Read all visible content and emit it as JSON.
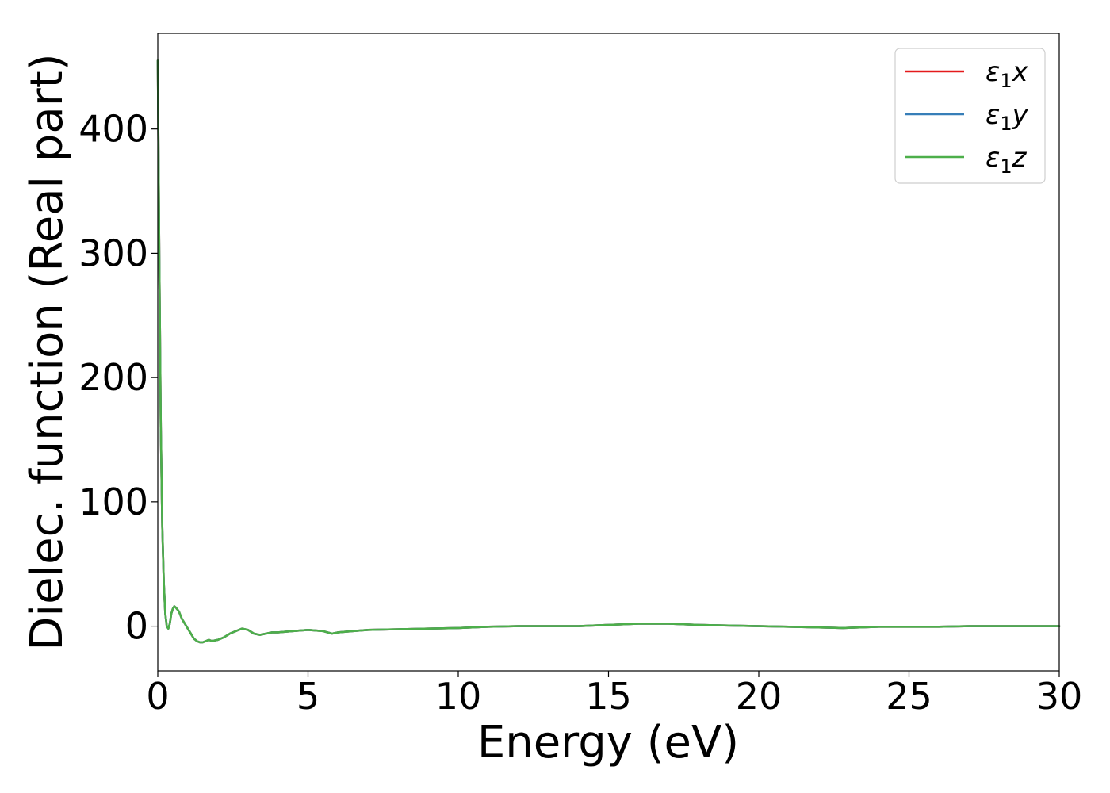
{
  "chart_data": {
    "type": "line",
    "title": "",
    "xlabel": "Energy (eV)",
    "ylabel": "Dielec. function (Real part)",
    "xlim": [
      0,
      30
    ],
    "ylim": [
      -36,
      477
    ],
    "xticks": [
      "0",
      "5",
      "10",
      "15",
      "20",
      "25",
      "30"
    ],
    "yticks": [
      "0",
      "100",
      "200",
      "300",
      "400"
    ],
    "xtick_values": [
      0,
      5,
      10,
      15,
      20,
      25,
      30
    ],
    "ytick_values": [
      0,
      100,
      200,
      300,
      400
    ],
    "grid": false,
    "legend_position": "top-right",
    "x": [
      0.0,
      0.05,
      0.1,
      0.15,
      0.2,
      0.25,
      0.3,
      0.35,
      0.4,
      0.45,
      0.5,
      0.55,
      0.6,
      0.7,
      0.8,
      0.9,
      1.0,
      1.1,
      1.2,
      1.3,
      1.4,
      1.5,
      1.6,
      1.7,
      1.8,
      2.0,
      2.2,
      2.4,
      2.6,
      2.8,
      3.0,
      3.2,
      3.4,
      3.6,
      3.8,
      4.0,
      4.5,
      5.0,
      5.5,
      5.8,
      6.0,
      6.5,
      7.0,
      8.0,
      9.0,
      10.0,
      11.0,
      12.0,
      13.0,
      14.0,
      15.0,
      16.0,
      17.0,
      18.0,
      19.0,
      20.0,
      21.0,
      22.0,
      22.8,
      24.0,
      25.0,
      26.0,
      27.0,
      28.0,
      29.0,
      30.0
    ],
    "series": [
      {
        "name": "ε₁x",
        "color": "#e41a1c",
        "values": [
          455,
          300,
          160,
          80,
          35,
          10,
          0,
          -2,
          2,
          10,
          14,
          16,
          15,
          12,
          6,
          2,
          -2,
          -6,
          -10,
          -12,
          -13,
          -13,
          -12,
          -11,
          -12,
          -11,
          -9,
          -6,
          -4,
          -2,
          -3,
          -6,
          -7,
          -6,
          -5,
          -5,
          -4,
          -3,
          -4,
          -6,
          -5,
          -4,
          -3,
          -2.5,
          -2,
          -1.5,
          -0.5,
          0,
          0,
          0,
          1,
          2,
          2,
          1,
          0.5,
          0,
          -0.5,
          -1,
          -1.5,
          -0.5,
          -0.5,
          -0.5,
          0,
          0,
          0,
          0
        ]
      },
      {
        "name": "ε₁y",
        "color": "#377eb8",
        "values": [
          455,
          300,
          160,
          80,
          35,
          10,
          0,
          -2,
          2,
          10,
          14,
          16,
          15,
          12,
          6,
          2,
          -2,
          -6,
          -10,
          -12,
          -13,
          -13,
          -12,
          -11,
          -12,
          -11,
          -9,
          -6,
          -4,
          -2,
          -3,
          -6,
          -7,
          -6,
          -5,
          -5,
          -4,
          -3,
          -4,
          -6,
          -5,
          -4,
          -3,
          -2.5,
          -2,
          -1.5,
          -0.5,
          0,
          0,
          0,
          1,
          2,
          2,
          1,
          0.5,
          0,
          -0.5,
          -1,
          -1.5,
          -0.5,
          -0.5,
          -0.5,
          0,
          0,
          0,
          0
        ]
      },
      {
        "name": "ε₁z",
        "color": "#4daf4a",
        "values": [
          455,
          300,
          160,
          80,
          35,
          10,
          0,
          -2,
          2,
          10,
          14,
          16,
          15,
          12,
          6,
          2,
          -2,
          -6,
          -10,
          -12,
          -13,
          -13,
          -12,
          -11,
          -12,
          -11,
          -9,
          -6,
          -4,
          -2,
          -3,
          -6,
          -7,
          -6,
          -5,
          -5,
          -4,
          -3,
          -4,
          -6,
          -5,
          -4,
          -3,
          -2.5,
          -2,
          -1.5,
          -0.5,
          0,
          0,
          0,
          1,
          2,
          2,
          1,
          0.5,
          0,
          -0.5,
          -1,
          -1.5,
          -0.5,
          -0.5,
          -0.5,
          0,
          0,
          0,
          0
        ]
      }
    ],
    "legend": [
      {
        "base": "ε",
        "sub": "1",
        "axis": "x"
      },
      {
        "base": "ε",
        "sub": "1",
        "axis": "y"
      },
      {
        "base": "ε",
        "sub": "1",
        "axis": "z"
      }
    ]
  }
}
